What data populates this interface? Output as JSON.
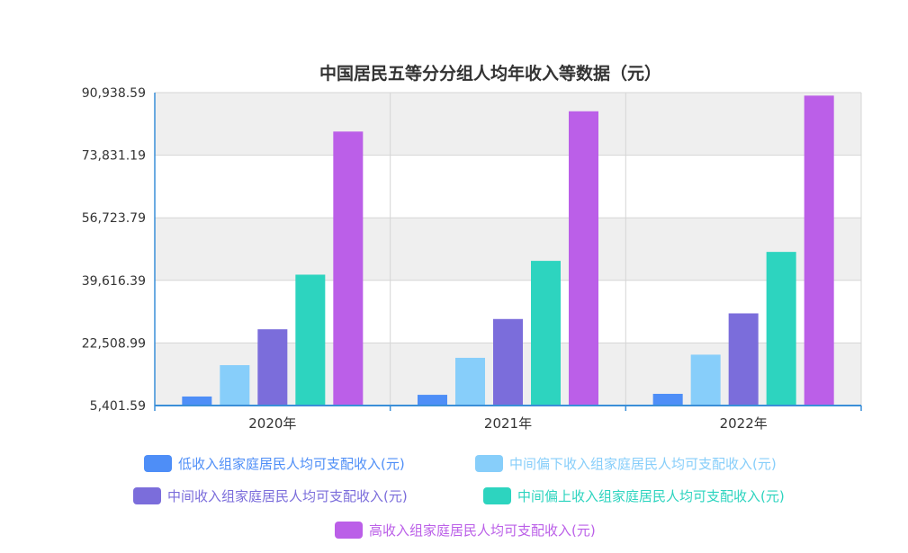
{
  "chart_data": {
    "type": "bar",
    "title": "中国居民五等分分组人均年收入等数据（元）",
    "categories": [
      "2020年",
      "2021年",
      "2022年"
    ],
    "ytick_labels": [
      "5,401.59",
      "22,508.99",
      "39,616.39",
      "56,723.79",
      "73,831.19",
      "90,938.59"
    ],
    "ylim": [
      5401.59,
      90938.59
    ],
    "grid": true,
    "legend_position": "bottom",
    "series": [
      {
        "name": "低收入组家庭居民人均可支配收入(元)",
        "color": "#4e8ef7",
        "values": [
          7869,
          8333,
          8601
        ]
      },
      {
        "name": "中间偏下收入组家庭居民人均可支配收入(元)",
        "color": "#87cefa",
        "values": [
          16443,
          18445,
          19303
        ]
      },
      {
        "name": "中间收入组家庭居民人均可支配收入(元)",
        "color": "#7b6ddb",
        "values": [
          26249,
          29053,
          30598
        ]
      },
      {
        "name": "中间偏上收入组家庭居民人均可支配收入(元)",
        "color": "#2dd4bf",
        "values": [
          41172,
          44949,
          47397
        ]
      },
      {
        "name": "高收入组家庭居民人均可支配收入(元)",
        "color": "#bb5fe8",
        "values": [
          80294,
          85836,
          90116
        ]
      }
    ]
  }
}
